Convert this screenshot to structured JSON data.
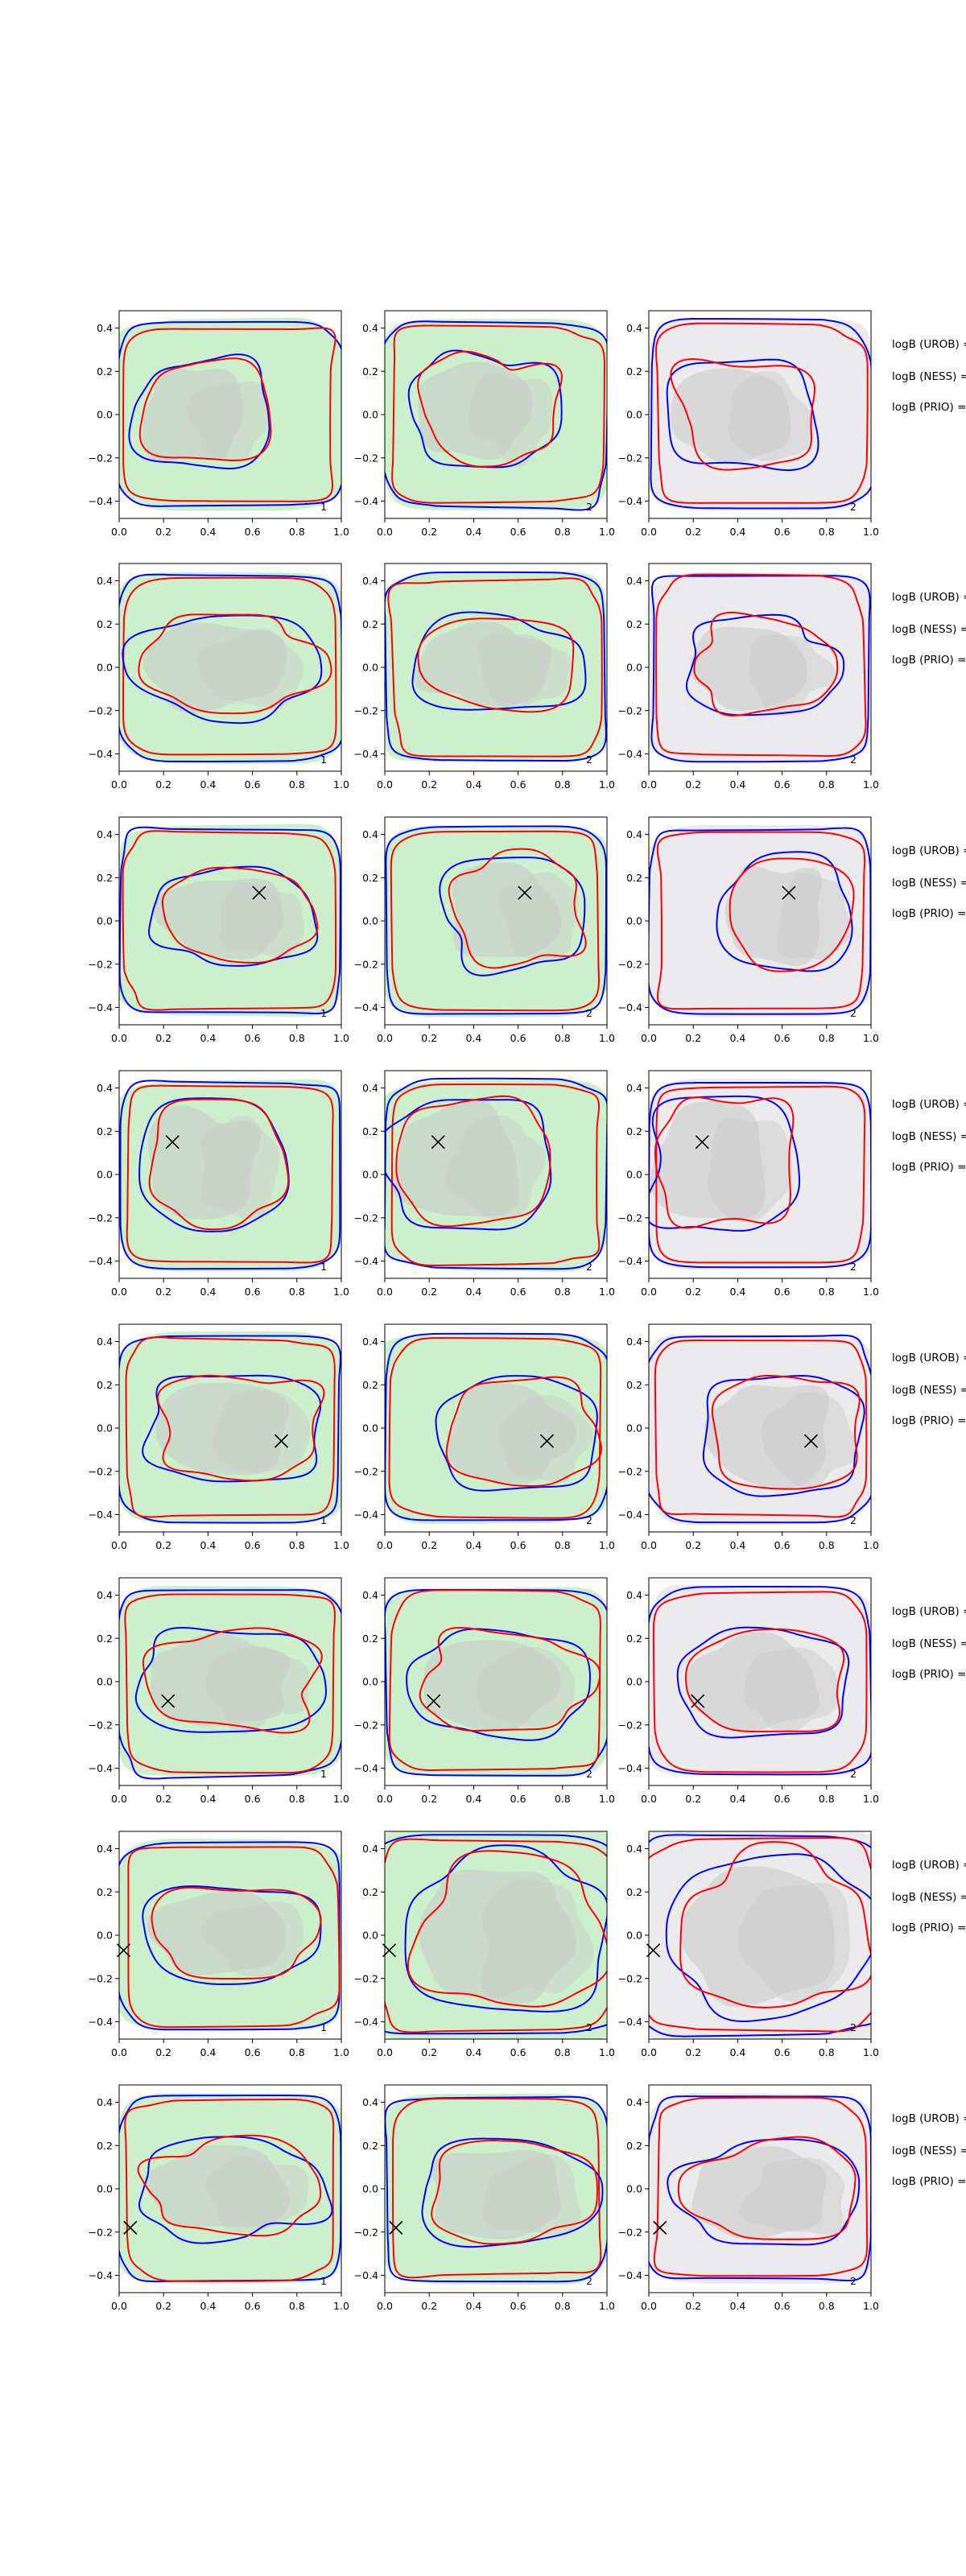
{
  "colors": {
    "background": "#ffffff",
    "green_fill": "#ccf0cc",
    "light_gray_fill": "#ebeaec",
    "gray_blob": "#c9c9c9",
    "red_contour": "#ff0000",
    "blue_contour": "#0000ff",
    "marker": "#000000"
  },
  "chart_data": {
    "type": "contour",
    "layout": "grid of 8 rows x 3 columns",
    "xlim": [
      0.0,
      1.0
    ],
    "ylim": [
      -0.48,
      0.48
    ],
    "x_ticks": [
      "0.0",
      "0.2",
      "0.4",
      "0.6",
      "0.8",
      "1.0"
    ],
    "y_ticks": [
      "0.4",
      "0.2",
      "0.0",
      "−0.2",
      "−0.4"
    ],
    "grid": false,
    "columns": [
      {
        "background": "green",
        "corner_label": "1"
      },
      {
        "background": "green",
        "corner_label": "2"
      },
      {
        "background": "gray",
        "corner_label": "2"
      }
    ],
    "side_labels": [
      "logB (UROB) =",
      "logB (NESS) =",
      "logB (PRIO) ="
    ],
    "rows": [
      {
        "marker": null
      },
      {
        "marker": null
      },
      {
        "marker": [
          0.63,
          0.13
        ]
      },
      {
        "marker": [
          0.24,
          0.15
        ]
      },
      {
        "marker": [
          0.73,
          -0.06
        ]
      },
      {
        "marker": [
          0.22,
          -0.09
        ]
      },
      {
        "marker": [
          0.02,
          -0.07
        ]
      },
      {
        "marker": [
          0.05,
          -0.18
        ]
      }
    ]
  }
}
